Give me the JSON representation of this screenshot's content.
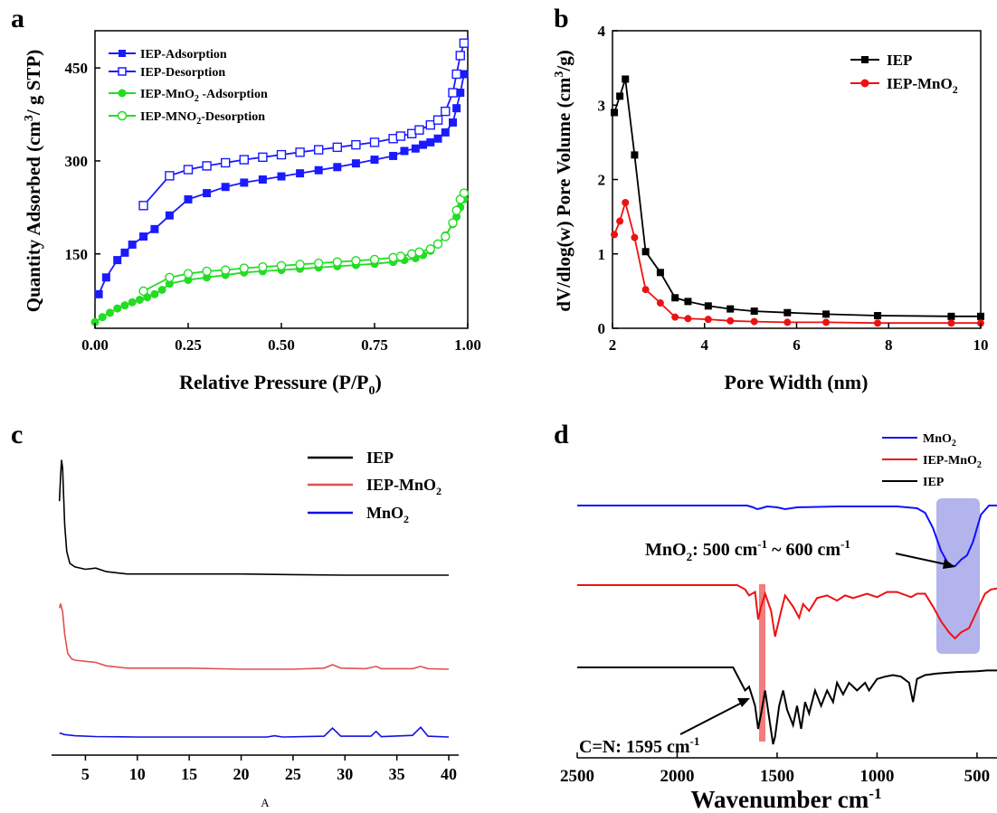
{
  "figure": {
    "panel_labels": [
      "a",
      "b",
      "c",
      "d"
    ],
    "bottom_caption": "A"
  },
  "colors": {
    "axis": "#000000",
    "ads_blue": "#1a1aff",
    "ads_green": "#22dd22",
    "iep_black": "#000000",
    "iep_mno2_red": "#ee1111",
    "xrd_red": "#e05050",
    "xrd_blue": "#1010e0",
    "ftir_blue": "#1010ff",
    "highlight_blue": "#7777dd",
    "highlight_red": "#f05050"
  },
  "chart_data": [
    {
      "panel": "a",
      "type": "line",
      "xlabel": "Relative Pressure (P/P0)",
      "ylabel": "Quantity Adsorbed (cm3/ g STP)",
      "xlim": [
        0,
        1.0
      ],
      "ylim": [
        30,
        510
      ],
      "xticks": [
        "0.00",
        "0.25",
        "0.50",
        "0.75",
        "1.00"
      ],
      "xtick_values": [
        0,
        0.25,
        0.5,
        0.75,
        1.0
      ],
      "yticks": [
        "150",
        "300",
        "450"
      ],
      "ytick_values": [
        150,
        300,
        450
      ],
      "legend_position": "top-left",
      "series": [
        {
          "name": "IEP-Adsorption",
          "color": "#1a1aff",
          "marker": "square-filled",
          "x": [
            0.01,
            0.03,
            0.06,
            0.08,
            0.1,
            0.13,
            0.16,
            0.2,
            0.25,
            0.3,
            0.35,
            0.4,
            0.45,
            0.5,
            0.55,
            0.6,
            0.65,
            0.7,
            0.75,
            0.8,
            0.83,
            0.86,
            0.88,
            0.9,
            0.92,
            0.94,
            0.96,
            0.97,
            0.98,
            0.99
          ],
          "y": [
            85,
            112,
            140,
            152,
            165,
            178,
            190,
            212,
            238,
            248,
            258,
            265,
            270,
            275,
            280,
            285,
            290,
            296,
            302,
            308,
            316,
            320,
            326,
            330,
            336,
            346,
            362,
            385,
            410,
            440
          ]
        },
        {
          "name": "IEP-Desorption",
          "color": "#1a1aff",
          "marker": "square-open",
          "x": [
            0.13,
            0.2,
            0.25,
            0.3,
            0.35,
            0.4,
            0.45,
            0.5,
            0.55,
            0.6,
            0.65,
            0.7,
            0.75,
            0.8,
            0.82,
            0.85,
            0.87,
            0.9,
            0.92,
            0.94,
            0.96,
            0.97,
            0.98,
            0.99
          ],
          "y": [
            228,
            276,
            286,
            292,
            297,
            302,
            306,
            310,
            314,
            318,
            322,
            326,
            330,
            336,
            340,
            344,
            350,
            358,
            366,
            380,
            410,
            440,
            470,
            490
          ]
        },
        {
          "name": "IEP-MnO2 -Adsorption",
          "color": "#22dd22",
          "marker": "circle-filled",
          "x": [
            0.0,
            0.02,
            0.04,
            0.06,
            0.08,
            0.1,
            0.12,
            0.14,
            0.16,
            0.18,
            0.2,
            0.25,
            0.3,
            0.35,
            0.4,
            0.45,
            0.5,
            0.55,
            0.6,
            0.65,
            0.7,
            0.75,
            0.8,
            0.83,
            0.86,
            0.88,
            0.9,
            0.92,
            0.94,
            0.96,
            0.97,
            0.98,
            0.99
          ],
          "y": [
            40,
            48,
            55,
            62,
            67,
            72,
            76,
            80,
            85,
            92,
            102,
            108,
            112,
            116,
            120,
            122,
            124,
            126,
            128,
            130,
            132,
            134,
            137,
            140,
            143,
            148,
            155,
            165,
            180,
            198,
            210,
            225,
            238
          ]
        },
        {
          "name": "IEP-MNO2-Desorption",
          "color": "#22dd22",
          "marker": "circle-open",
          "x": [
            0.13,
            0.2,
            0.25,
            0.3,
            0.35,
            0.4,
            0.45,
            0.5,
            0.55,
            0.6,
            0.65,
            0.7,
            0.75,
            0.8,
            0.82,
            0.85,
            0.87,
            0.9,
            0.92,
            0.94,
            0.96,
            0.97,
            0.98,
            0.99
          ],
          "y": [
            90,
            112,
            118,
            122,
            124,
            127,
            129,
            131,
            133,
            135,
            137,
            139,
            141,
            144,
            146,
            150,
            153,
            158,
            166,
            178,
            200,
            220,
            238,
            248
          ]
        }
      ]
    },
    {
      "panel": "b",
      "type": "line",
      "xlabel": "Pore Width (nm)",
      "ylabel": "dV/dlog(w) Pore Volume (cm3/g)",
      "xlim": [
        2,
        10
      ],
      "ylim": [
        0,
        4
      ],
      "xticks": [
        "2",
        "4",
        "6",
        "8",
        "10"
      ],
      "xtick_values": [
        2,
        4,
        6,
        8,
        10
      ],
      "yticks": [
        "0",
        "1",
        "2",
        "3",
        "4"
      ],
      "ytick_values": [
        0,
        1,
        2,
        3,
        4
      ],
      "legend_position": "top-right",
      "series": [
        {
          "name": "IEP",
          "color": "#000000",
          "marker": "square-filled",
          "x": [
            2.04,
            2.16,
            2.28,
            2.48,
            2.72,
            3.04,
            3.36,
            3.64,
            4.08,
            4.56,
            5.08,
            5.8,
            6.64,
            7.76,
            9.36,
            10.0
          ],
          "y": [
            2.9,
            3.12,
            3.35,
            2.33,
            1.03,
            0.75,
            0.41,
            0.36,
            0.3,
            0.26,
            0.23,
            0.21,
            0.19,
            0.17,
            0.16,
            0.16
          ]
        },
        {
          "name": "IEP-MnO2",
          "color": "#ee1111",
          "marker": "circle-filled",
          "x": [
            2.04,
            2.16,
            2.28,
            2.48,
            2.72,
            3.04,
            3.36,
            3.64,
            4.08,
            4.56,
            5.08,
            5.8,
            6.64,
            7.76,
            9.36,
            10.0
          ],
          "y": [
            1.26,
            1.44,
            1.69,
            1.22,
            0.52,
            0.34,
            0.15,
            0.13,
            0.12,
            0.1,
            0.09,
            0.08,
            0.08,
            0.07,
            0.07,
            0.07
          ]
        }
      ]
    },
    {
      "panel": "c",
      "type": "line",
      "xlim": [
        2,
        41
      ],
      "xticks": [
        "5",
        "10",
        "15",
        "20",
        "25",
        "30",
        "35",
        "40"
      ],
      "xtick_values": [
        5,
        10,
        15,
        20,
        25,
        30,
        35,
        40
      ],
      "legend_position": "top-right",
      "series": [
        {
          "name": "IEP",
          "color": "#000000",
          "x": [
            2.5,
            2.6,
            2.7,
            2.8,
            2.9,
            3.0,
            3.2,
            3.5,
            4.0,
            5.0,
            6.0,
            7.0,
            9.0,
            15.0,
            20.0,
            25.0,
            30.0,
            35.0,
            40.0
          ],
          "y": [
            0.65,
            0.85,
            1.0,
            0.93,
            0.7,
            0.45,
            0.22,
            0.12,
            0.09,
            0.07,
            0.08,
            0.05,
            0.03,
            0.03,
            0.03,
            0.025,
            0.02,
            0.02,
            0.02
          ]
        },
        {
          "name": "IEP-MnO2",
          "color": "#e05050",
          "x": [
            2.5,
            2.6,
            2.8,
            3.0,
            3.3,
            3.7,
            4.0,
            5.0,
            6.0,
            7.0,
            9.0,
            15.0,
            20.0,
            25.0,
            28.0,
            28.8,
            29.6,
            32.0,
            33.0,
            33.5,
            36.5,
            37.3,
            38.0,
            40.0
          ],
          "y": [
            0.58,
            0.62,
            0.55,
            0.35,
            0.18,
            0.13,
            0.12,
            0.11,
            0.1,
            0.07,
            0.05,
            0.05,
            0.04,
            0.04,
            0.05,
            0.08,
            0.05,
            0.045,
            0.065,
            0.045,
            0.045,
            0.065,
            0.045,
            0.04
          ]
        },
        {
          "name": "MnO2",
          "color": "#1010e0",
          "x": [
            2.5,
            3.0,
            4.0,
            6.0,
            10.0,
            15.0,
            20.0,
            22.5,
            23.2,
            24.0,
            28.0,
            28.8,
            29.6,
            32.5,
            33.0,
            33.5,
            36.5,
            37.3,
            38.0,
            40.0
          ],
          "y": [
            0.07,
            0.05,
            0.035,
            0.025,
            0.02,
            0.02,
            0.02,
            0.02,
            0.035,
            0.02,
            0.03,
            0.13,
            0.03,
            0.03,
            0.09,
            0.025,
            0.04,
            0.14,
            0.03,
            0.02
          ]
        }
      ]
    },
    {
      "panel": "d",
      "type": "line",
      "xlabel": "Wavenumber cm-1",
      "xlim": [
        2500,
        400
      ],
      "xticks": [
        "2500",
        "2000",
        "1500",
        "1000",
        "500"
      ],
      "xtick_values": [
        2500,
        2000,
        1500,
        1000,
        500
      ],
      "legend_position": "top-right",
      "series": [
        {
          "name": "MnO2",
          "color": "#1010ff",
          "x": [
            2500,
            2000,
            1800,
            1650,
            1620,
            1600,
            1580,
            1550,
            1500,
            1460,
            1400,
            1200,
            1000,
            900,
            800,
            760,
            720,
            680,
            640,
            610,
            580,
            550,
            520,
            480,
            440,
            400
          ],
          "y": [
            0,
            0,
            0,
            0,
            -0.02,
            -0.04,
            -0.03,
            -0.01,
            -0.02,
            -0.04,
            -0.02,
            -0.01,
            -0.01,
            -0.01,
            -0.03,
            -0.08,
            -0.25,
            -0.5,
            -0.66,
            -0.67,
            -0.6,
            -0.55,
            -0.4,
            -0.1,
            0,
            0
          ]
        },
        {
          "name": "IEP-MnO2",
          "color": "#ee1111",
          "x": [
            2500,
            2000,
            1700,
            1660,
            1640,
            1610,
            1595,
            1580,
            1560,
            1530,
            1510,
            1480,
            1460,
            1420,
            1390,
            1370,
            1340,
            1300,
            1250,
            1200,
            1160,
            1120,
            1050,
            1000,
            950,
            900,
            830,
            800,
            760,
            720,
            680,
            640,
            610,
            580,
            540,
            500,
            460,
            430,
            400
          ],
          "y": [
            0,
            0,
            0,
            -0.05,
            -0.12,
            -0.08,
            -0.4,
            -0.25,
            -0.1,
            -0.3,
            -0.6,
            -0.3,
            -0.12,
            -0.25,
            -0.38,
            -0.22,
            -0.3,
            -0.15,
            -0.12,
            -0.18,
            -0.12,
            -0.15,
            -0.1,
            -0.14,
            -0.08,
            -0.08,
            -0.14,
            -0.1,
            -0.1,
            -0.25,
            -0.42,
            -0.55,
            -0.62,
            -0.55,
            -0.5,
            -0.3,
            -0.1,
            -0.05,
            -0.04
          ]
        },
        {
          "name": "IEP",
          "color": "#000000",
          "x": [
            2500,
            2000,
            1720,
            1680,
            1660,
            1640,
            1610,
            1595,
            1580,
            1560,
            1540,
            1520,
            1510,
            1490,
            1470,
            1450,
            1420,
            1400,
            1380,
            1360,
            1340,
            1310,
            1280,
            1250,
            1220,
            1200,
            1170,
            1140,
            1100,
            1060,
            1040,
            1000,
            960,
            920,
            880,
            840,
            820,
            800,
            760,
            700,
            600,
            500,
            450,
            400
          ],
          "y": [
            0,
            0,
            0,
            -0.2,
            -0.3,
            -0.25,
            -0.5,
            -0.8,
            -0.6,
            -0.3,
            -0.65,
            -1.0,
            -0.9,
            -0.5,
            -0.3,
            -0.55,
            -0.75,
            -0.5,
            -0.8,
            -0.45,
            -0.6,
            -0.3,
            -0.5,
            -0.3,
            -0.45,
            -0.2,
            -0.35,
            -0.2,
            -0.3,
            -0.2,
            -0.3,
            -0.15,
            -0.12,
            -0.1,
            -0.12,
            -0.2,
            -0.45,
            -0.15,
            -0.1,
            -0.08,
            -0.06,
            -0.05,
            -0.04,
            -0.04
          ]
        }
      ],
      "annotations": [
        "MnO2: 500 cm-1 ~ 600 cm-1",
        "C=N: 1595 cm-1"
      ]
    }
  ]
}
